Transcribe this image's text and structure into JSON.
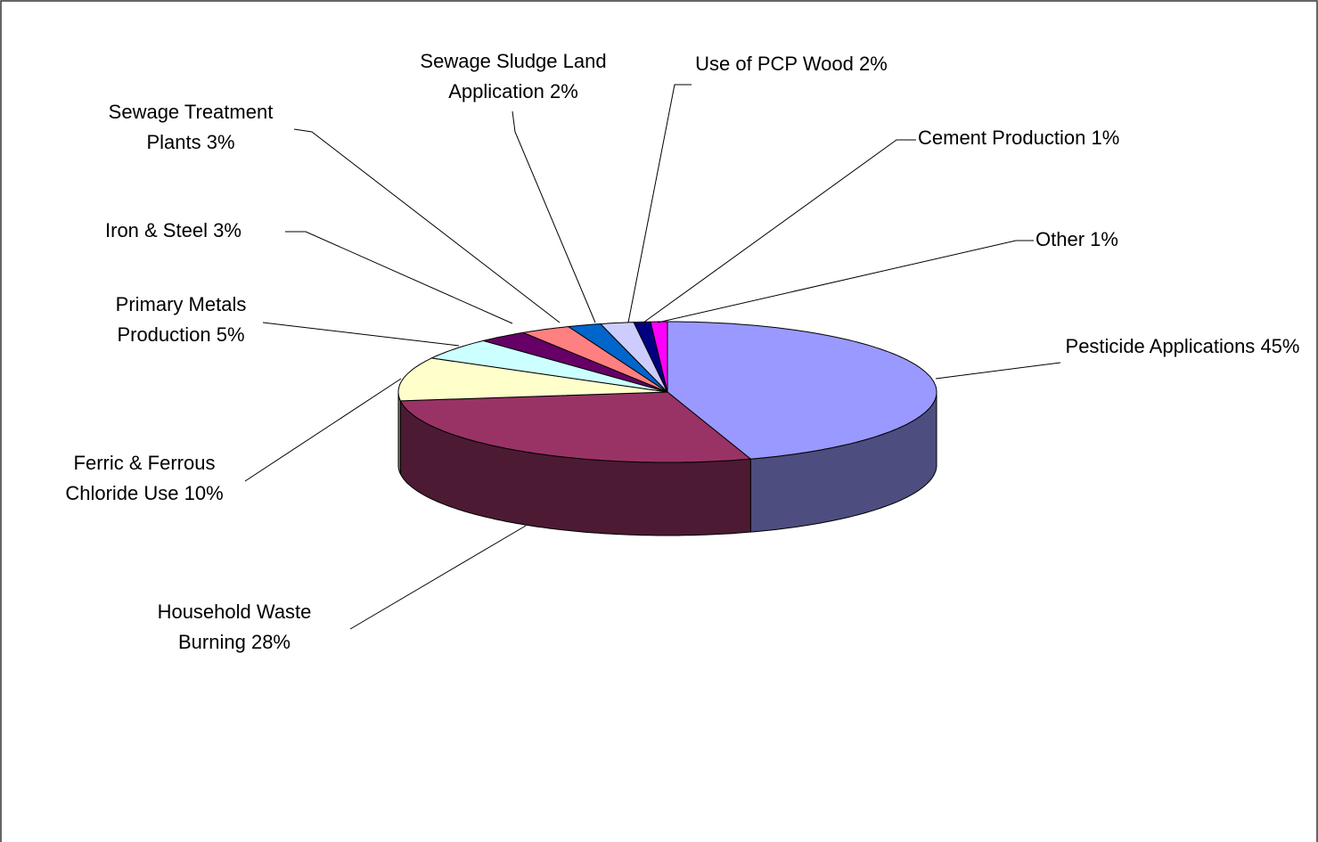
{
  "chart_data": {
    "type": "pie3d",
    "categories": [
      "Pesticide Applications",
      "Household Waste Burning",
      "Ferric & Ferrous Chloride Use",
      "Primary Metals Production",
      "Iron & Steel",
      "Sewage Treatment Plants",
      "Sewage Sludge Land Application",
      "Use of PCP Wood",
      "Cement Production",
      "Other"
    ],
    "values": [
      45,
      28,
      10,
      5,
      3,
      3,
      2,
      2,
      1,
      1
    ],
    "value_labels": [
      "45%",
      "28%",
      "10%",
      "5%",
      "3%",
      "3%",
      "2%",
      "2%",
      "1%",
      "1%"
    ],
    "colors": [
      "#9999ff",
      "#993366",
      "#ffffcc",
      "#ccffff",
      "#660066",
      "#ff8080",
      "#0066cc",
      "#ccccff",
      "#000080",
      "#ff00ff"
    ]
  }
}
